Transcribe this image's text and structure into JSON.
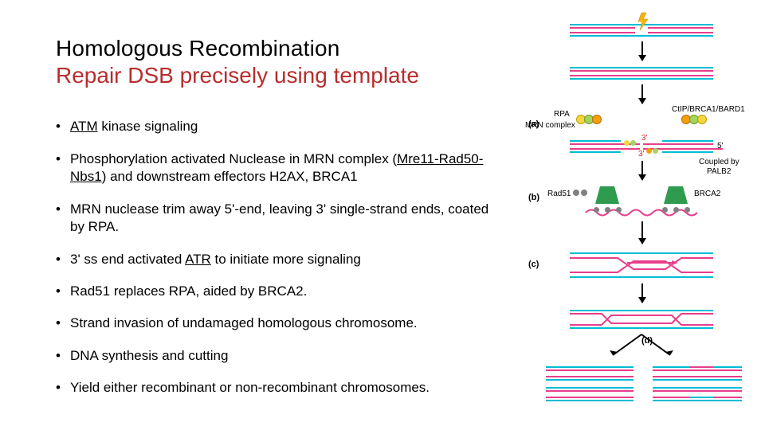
{
  "title": {
    "line1": "Homologous Recombination",
    "line2": "Repair DSB precisely using template"
  },
  "bullets": [
    {
      "html": "<span class='u'>ATM</span> kinase signaling"
    },
    {
      "html": "Phosphorylation activated Nuclease in MRN complex (<span class='u'>Mre11-Rad50-Nbs1</span>) and downstream effectors H2AX, BRCA1"
    },
    {
      "html": "MRN nuclease trim away 5'-end, leaving 3' single-strand ends, coated by RPA."
    },
    {
      "html": "3' ss end activated <span class='u'>ATR</span> to initiate more signaling"
    },
    {
      "html": "Rad51 replaces RPA, aided by BRCA2."
    },
    {
      "html": "Strand invasion of undamaged homologous chromosome."
    },
    {
      "html": "DNA synthesis and cutting"
    },
    {
      "html": "Yield either recombinant or non-recombinant chromosomes."
    }
  ],
  "diagram": {
    "colors": {
      "magenta": "#e83e8c",
      "cyan": "#00bcd4",
      "green": "#2e9b4f",
      "orange": "#f59e0b",
      "yellow": "#f5d742",
      "lime": "#a4d65e",
      "red": "#d12b2b",
      "bolt": "#f7b500",
      "gray": "#808080",
      "black": "#000000"
    },
    "labels": {
      "panel_a": "(a)",
      "panel_b": "(b)",
      "panel_c": "(c)",
      "panel_d": "(d)",
      "rpa": "RPA",
      "mrn": "MRN complex",
      "ctip": "CtIP/BRCA1/BARD1",
      "coupled": "Coupled by",
      "palb2": "PALB2",
      "rad51": "Rad51",
      "brca2": "BRCA2",
      "three_prime": "3'",
      "five_prime": "5'"
    }
  }
}
